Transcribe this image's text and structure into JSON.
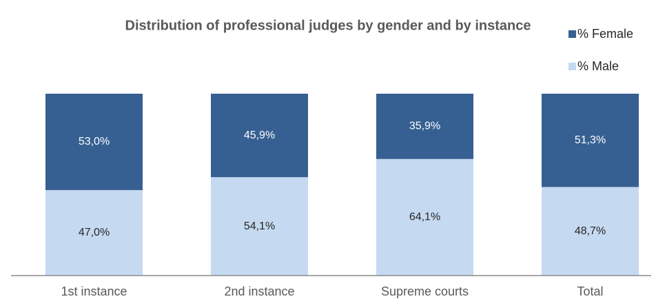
{
  "chart_data": {
    "type": "stacked_bar",
    "title": "Distribution of professional judges by gender and by instance",
    "categories": [
      "1st instance",
      "2nd instance",
      "Supreme courts",
      "Total"
    ],
    "series": [
      {
        "name": "% Male",
        "color": "#c5d9f1",
        "values": [
          47.0,
          54.1,
          64.1,
          48.7
        ],
        "value_labels": [
          "47,0%",
          "54,1%",
          "64,1%",
          "48,7%"
        ]
      },
      {
        "name": "% Female",
        "color": "#366092",
        "values": [
          53.0,
          45.9,
          35.9,
          51.3
        ],
        "value_labels": [
          "53,0%",
          "45,9%",
          "35,9%",
          "51,3%"
        ]
      }
    ],
    "ylim": [
      0,
      100
    ],
    "legend": "top-right"
  }
}
